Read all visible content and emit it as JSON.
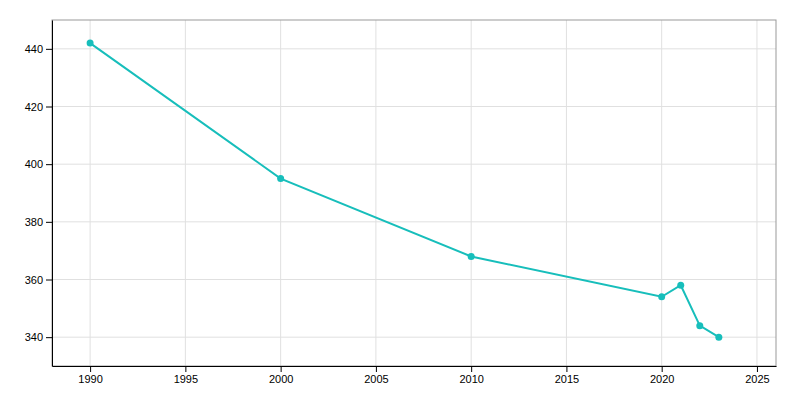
{
  "chart_data": {
    "type": "line",
    "x": [
      1990,
      2000,
      2010,
      2020,
      2021,
      2022,
      2023
    ],
    "values": [
      442,
      395,
      368,
      354,
      358,
      344,
      340
    ],
    "color": "#17bebb",
    "marker": "circle",
    "xlim": [
      1988,
      2026
    ],
    "ylim": [
      330,
      450
    ],
    "xticks": [
      1990,
      1995,
      2000,
      2005,
      2010,
      2015,
      2020,
      2025
    ],
    "yticks": [
      340,
      360,
      380,
      400,
      420,
      440
    ],
    "grid": true
  }
}
